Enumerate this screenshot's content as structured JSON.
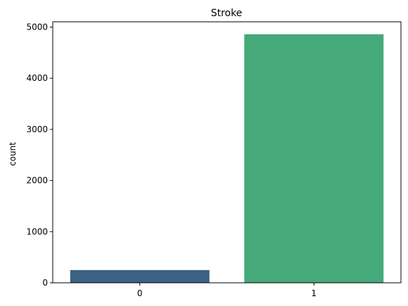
{
  "chart_data": {
    "type": "bar",
    "title": "Stroke",
    "xlabel": "",
    "ylabel": "count",
    "categories": [
      "0",
      "1"
    ],
    "values": [
      249,
      4861
    ],
    "ylim": [
      0,
      5104
    ],
    "yticks": [
      0,
      1000,
      2000,
      3000,
      4000,
      5000
    ],
    "colors": [
      "#3b6283",
      "#46a97a"
    ],
    "grid": false,
    "legend": "none"
  }
}
